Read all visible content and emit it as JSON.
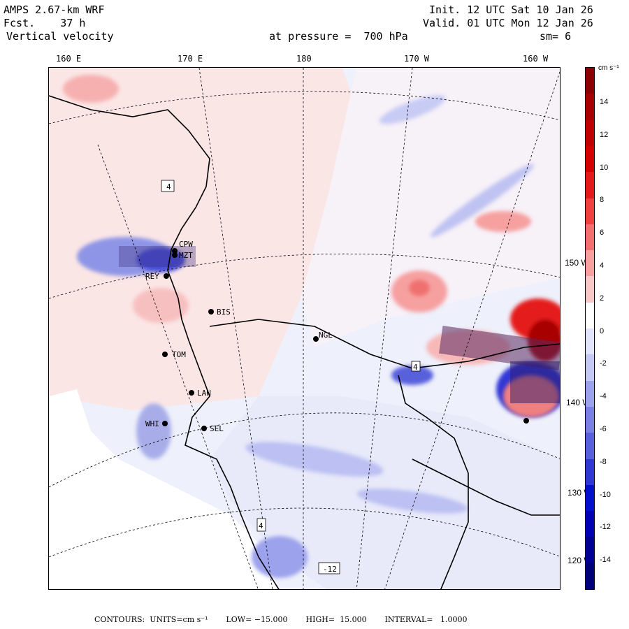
{
  "header": {
    "model": "AMPS 2.67-km WRF",
    "fcst_label": "Fcst.",
    "fcst_value": "37 h",
    "field": "Vertical velocity",
    "init_label": "Init.",
    "init_value": "12 UTC Sat 10 Jan 26",
    "valid_label": "Valid.",
    "valid_value": "01 UTC Mon 12 Jan 26",
    "level": "at pressure =  700 hPa",
    "smooth": "sm= 6"
  },
  "lon_labels": [
    "160 E",
    "170 E",
    "180",
    "170 W",
    "160 W"
  ],
  "lat_labels": [
    "150 W",
    "140 W",
    "130 W",
    "120 W"
  ],
  "stations": [
    {
      "code": "CPW"
    },
    {
      "code": "MZT"
    },
    {
      "code": "REY"
    },
    {
      "code": "BIS"
    },
    {
      "code": "NGL"
    },
    {
      "code": "TOM"
    },
    {
      "code": "LAN"
    },
    {
      "code": "WHI"
    },
    {
      "code": "SEL"
    }
  ],
  "contour_labels": [
    "4",
    "4",
    "4",
    "-12"
  ],
  "colorbar": {
    "unit": "cm s⁻¹",
    "labels": [
      "14",
      "12",
      "10",
      "8",
      "6",
      "4",
      "2",
      "0",
      "-2",
      "-4",
      "-6",
      "-8",
      "-10",
      "-12",
      "-14"
    ],
    "colors": [
      "#8b0000",
      "#a80000",
      "#c00000",
      "#d40000",
      "#e41a1a",
      "#f04040",
      "#f47070",
      "#f6a0a0",
      "#f8c8c8",
      "#ffffff",
      "#e2e4fb",
      "#c4c8f4",
      "#9ca2ec",
      "#7a80e4",
      "#5860dc",
      "#3038d4",
      "#0010cc",
      "#0000b4",
      "#000094",
      "#000078"
    ]
  },
  "footer": {
    "contours": "CONTOURS:  UNITS=cm s⁻¹",
    "low": "LOW= −15.000",
    "high": "HIGH=  15.000",
    "interval": "INTERVAL=   1.0000"
  }
}
